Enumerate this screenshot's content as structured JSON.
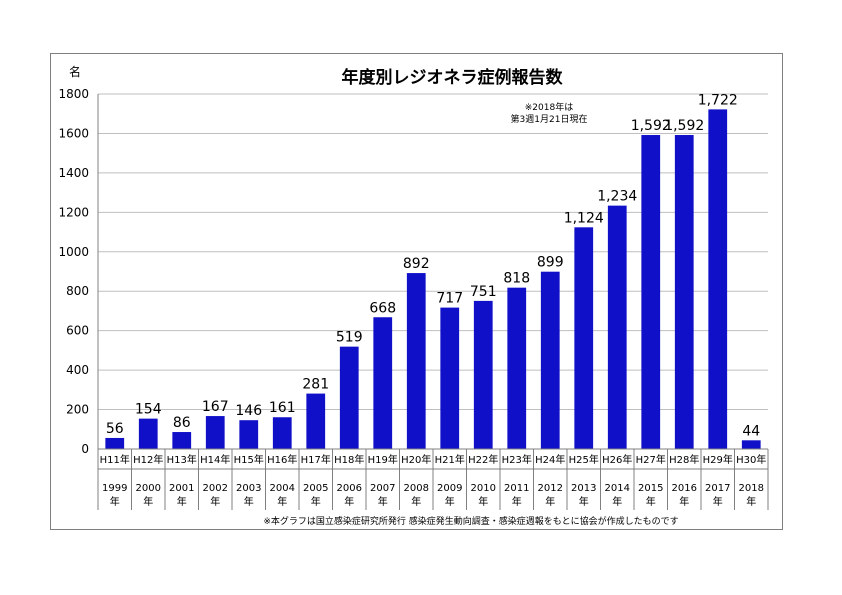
{
  "chart_data": {
    "type": "bar",
    "title": "年度別レジオネラ症例報告数",
    "ylabel": "名",
    "ylim": [
      0,
      1800
    ],
    "yticks": [
      0,
      200,
      400,
      600,
      800,
      1000,
      1200,
      1400,
      1600,
      1800
    ],
    "grid": true,
    "categories": [
      "H11年",
      "H12年",
      "H13年",
      "H14年",
      "H15年",
      "H16年",
      "H17年",
      "H18年",
      "H19年",
      "H20年",
      "H21年",
      "H22年",
      "H23年",
      "H24年",
      "H25年",
      "H26年",
      "H27年",
      "H28年",
      "H29年",
      "H30年"
    ],
    "years": [
      "1999",
      "2000",
      "2001",
      "2002",
      "2003",
      "2004",
      "2005",
      "2006",
      "2007",
      "2008",
      "2009",
      "2010",
      "2011",
      "2012",
      "2013",
      "2014",
      "2015",
      "2016",
      "2017",
      "2018"
    ],
    "year_suffix": "年",
    "values": [
      56,
      154,
      86,
      167,
      146,
      161,
      281,
      519,
      668,
      892,
      717,
      751,
      818,
      899,
      1124,
      1234,
      1592,
      1592,
      1722,
      44
    ],
    "value_labels": [
      "56",
      "154",
      "86",
      "167",
      "146",
      "161",
      "281",
      "519",
      "668",
      "892",
      "717",
      "751",
      "818",
      "899",
      "1,124",
      "1,234",
      "1,592",
      "1,592",
      "1,722",
      "44"
    ],
    "colors": {
      "bar": "#1010c8",
      "highlight_label": "#ff0000",
      "grid": "#bfbfbf"
    },
    "highlight_index": 19,
    "annotation": [
      "※2018年は",
      "第3週1月21日現在"
    ],
    "footnote": "※本グラフは国立感染症研究所発行 感染症発生動向調査・感染症週報をもとに協会が作成したものです"
  }
}
